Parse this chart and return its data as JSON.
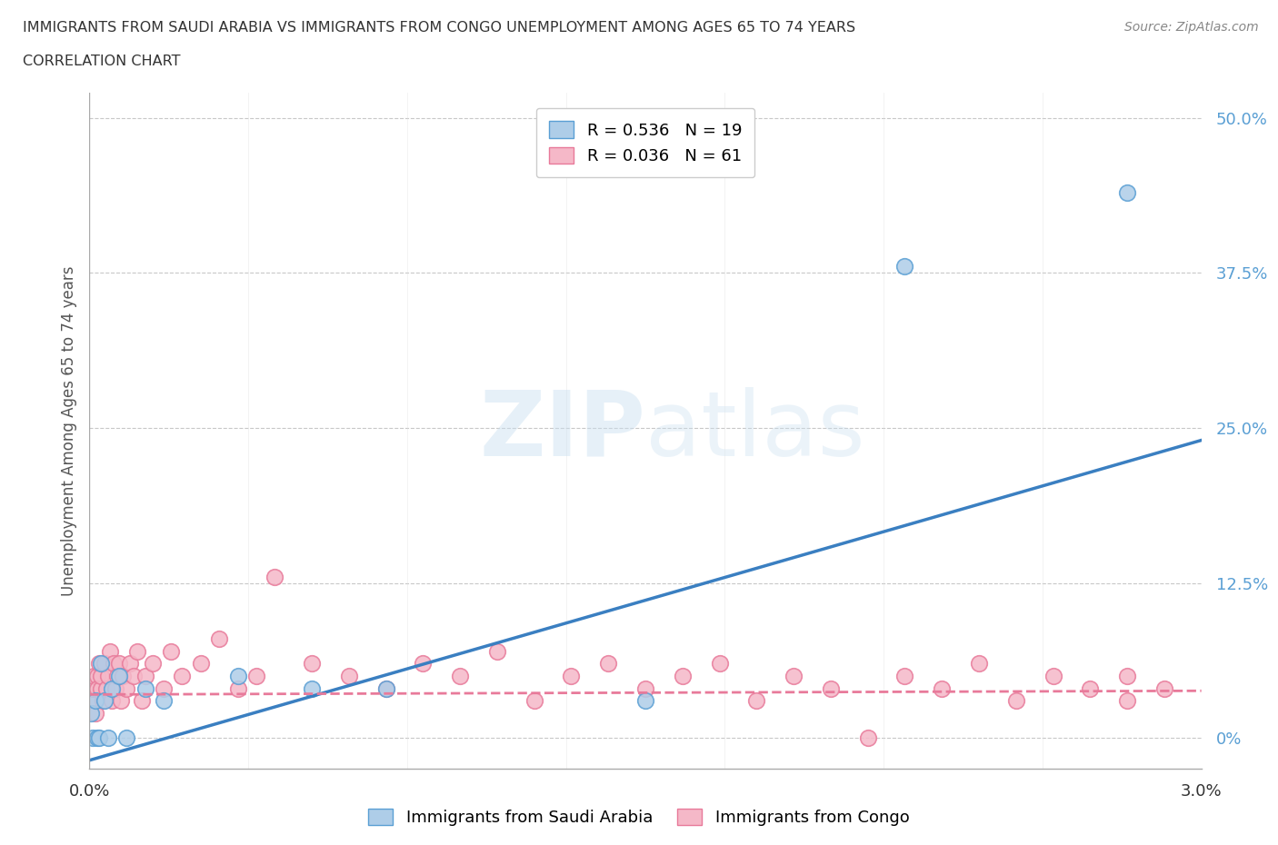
{
  "title_line1": "IMMIGRANTS FROM SAUDI ARABIA VS IMMIGRANTS FROM CONGO UNEMPLOYMENT AMONG AGES 65 TO 74 YEARS",
  "title_line2": "CORRELATION CHART",
  "source": "Source: ZipAtlas.com",
  "ylabel": "Unemployment Among Ages 65 to 74 years",
  "ytick_vals": [
    0.0,
    0.125,
    0.25,
    0.375,
    0.5
  ],
  "ytick_labels": [
    "0%",
    "12.5%",
    "25.0%",
    "37.5%",
    "50.0%"
  ],
  "xtick_vals": [
    0.0,
    0.03
  ],
  "xtick_labels": [
    "0.0%",
    "3.0%"
  ],
  "legend_r1": "R = 0.536   N = 19",
  "legend_r2": "R = 0.036   N = 61",
  "watermark_top": "ZIP",
  "watermark_bot": "atlas",
  "series1_color": "#aecde8",
  "series1_edge": "#5a9fd4",
  "series2_color": "#f5b8c8",
  "series2_edge": "#e87a9a",
  "line1_color": "#3a7fc1",
  "line2_color": "#e87a9a",
  "background_color": "#ffffff",
  "saudi_x": [
    5e-05,
    0.0001,
    0.00015,
    0.0002,
    0.00025,
    0.0003,
    0.0004,
    0.0005,
    0.0006,
    0.0008,
    0.001,
    0.0015,
    0.002,
    0.004,
    0.006,
    0.008,
    0.015,
    0.022,
    0.028
  ],
  "saudi_y": [
    0.02,
    0.0,
    0.03,
    0.0,
    0.0,
    0.06,
    0.03,
    0.0,
    0.04,
    0.05,
    0.0,
    0.04,
    0.03,
    0.05,
    0.04,
    0.04,
    0.03,
    0.38,
    0.44
  ],
  "congo_x": [
    5e-05,
    0.0001,
    0.00012,
    0.00015,
    0.0002,
    0.00022,
    0.00025,
    0.0003,
    0.00032,
    0.00035,
    0.0004,
    0.00045,
    0.0005,
    0.00055,
    0.0006,
    0.00065,
    0.0007,
    0.00075,
    0.0008,
    0.00085,
    0.0009,
    0.001,
    0.0011,
    0.0012,
    0.0013,
    0.0014,
    0.0015,
    0.0017,
    0.002,
    0.0022,
    0.0025,
    0.003,
    0.0035,
    0.004,
    0.0045,
    0.005,
    0.006,
    0.007,
    0.008,
    0.009,
    0.01,
    0.011,
    0.012,
    0.013,
    0.014,
    0.015,
    0.016,
    0.017,
    0.018,
    0.019,
    0.02,
    0.021,
    0.022,
    0.023,
    0.024,
    0.025,
    0.026,
    0.027,
    0.028,
    0.028,
    0.029
  ],
  "congo_y": [
    0.03,
    0.04,
    0.05,
    0.02,
    0.05,
    0.04,
    0.06,
    0.04,
    0.05,
    0.03,
    0.06,
    0.04,
    0.05,
    0.07,
    0.03,
    0.06,
    0.04,
    0.05,
    0.06,
    0.03,
    0.05,
    0.04,
    0.06,
    0.05,
    0.07,
    0.03,
    0.05,
    0.06,
    0.04,
    0.07,
    0.05,
    0.06,
    0.08,
    0.04,
    0.05,
    0.13,
    0.06,
    0.05,
    0.04,
    0.06,
    0.05,
    0.07,
    0.03,
    0.05,
    0.06,
    0.04,
    0.05,
    0.06,
    0.03,
    0.05,
    0.04,
    0.0,
    0.05,
    0.04,
    0.06,
    0.03,
    0.05,
    0.04,
    0.03,
    0.05,
    0.04
  ],
  "xmin": 0.0,
  "xmax": 0.03,
  "ymin": -0.025,
  "ymax": 0.52,
  "line1_x0": 0.0,
  "line1_y0": -0.018,
  "line1_x1": 0.03,
  "line1_y1": 0.24,
  "line2_x0": 0.0,
  "line2_y0": 0.035,
  "line2_x1": 0.03,
  "line2_y1": 0.038
}
